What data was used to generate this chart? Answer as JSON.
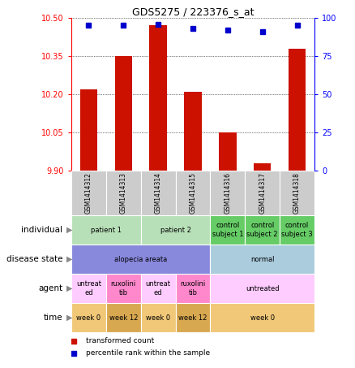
{
  "title": "GDS5275 / 223376_s_at",
  "samples": [
    "GSM1414312",
    "GSM1414313",
    "GSM1414314",
    "GSM1414315",
    "GSM1414316",
    "GSM1414317",
    "GSM1414318"
  ],
  "transformed_count": [
    10.22,
    10.35,
    10.47,
    10.21,
    10.05,
    9.93,
    10.38
  ],
  "percentile_rank": [
    95,
    95,
    96,
    93,
    92,
    91,
    95
  ],
  "ylim_left": [
    9.9,
    10.5
  ],
  "ylim_right": [
    0,
    100
  ],
  "yticks_left": [
    9.9,
    10.05,
    10.2,
    10.35,
    10.5
  ],
  "yticks_right": [
    0,
    25,
    50,
    75,
    100
  ],
  "bar_color": "#cc1100",
  "dot_color": "#0000cc",
  "annotation_rows": [
    {
      "label": "individual",
      "cells": [
        {
          "text": "patient 1",
          "colspan": 2,
          "color": "#b8e0b8"
        },
        {
          "text": "patient 2",
          "colspan": 2,
          "color": "#b8e0b8"
        },
        {
          "text": "control\nsubject 1",
          "colspan": 1,
          "color": "#66cc66"
        },
        {
          "text": "control\nsubject 2",
          "colspan": 1,
          "color": "#66cc66"
        },
        {
          "text": "control\nsubject 3",
          "colspan": 1,
          "color": "#66cc66"
        }
      ]
    },
    {
      "label": "disease state",
      "cells": [
        {
          "text": "alopecia areata",
          "colspan": 4,
          "color": "#8888dd"
        },
        {
          "text": "normal",
          "colspan": 3,
          "color": "#aaccdd"
        }
      ]
    },
    {
      "label": "agent",
      "cells": [
        {
          "text": "untreat\ned",
          "colspan": 1,
          "color": "#ffccff"
        },
        {
          "text": "ruxolini\ntib",
          "colspan": 1,
          "color": "#ff88cc"
        },
        {
          "text": "untreat\ned",
          "colspan": 1,
          "color": "#ffccff"
        },
        {
          "text": "ruxolini\ntib",
          "colspan": 1,
          "color": "#ff88cc"
        },
        {
          "text": "untreated",
          "colspan": 3,
          "color": "#ffccff"
        }
      ]
    },
    {
      "label": "time",
      "cells": [
        {
          "text": "week 0",
          "colspan": 1,
          "color": "#f0c878"
        },
        {
          "text": "week 12",
          "colspan": 1,
          "color": "#d8a850"
        },
        {
          "text": "week 0",
          "colspan": 1,
          "color": "#f0c878"
        },
        {
          "text": "week 12",
          "colspan": 1,
          "color": "#d8a850"
        },
        {
          "text": "week 0",
          "colspan": 3,
          "color": "#f0c878"
        }
      ]
    }
  ],
  "legend": [
    {
      "color": "#cc1100",
      "label": "transformed count"
    },
    {
      "color": "#0000cc",
      "label": "percentile rank within the sample"
    }
  ]
}
